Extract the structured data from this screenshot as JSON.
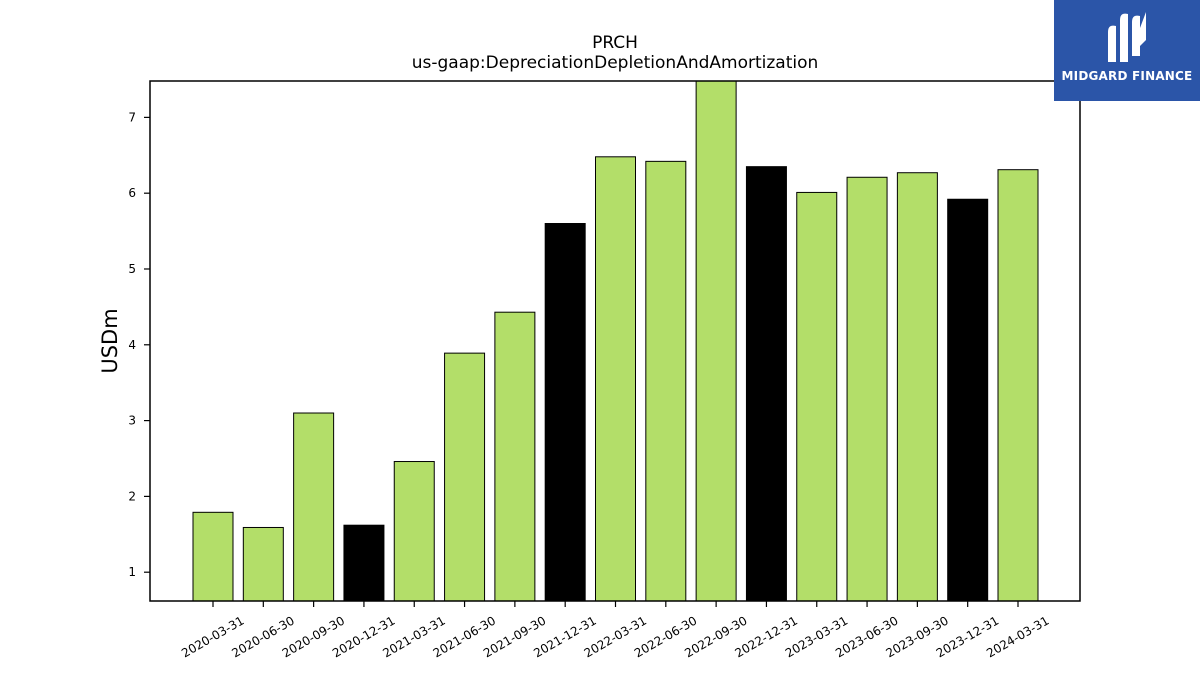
{
  "chart_data": {
    "type": "bar",
    "title": "PRCH",
    "subtitle": "us-gaap:DepreciationDepletionAndAmortization",
    "xlabel": "",
    "ylabel": "USDm",
    "categories": [
      "2020-03-31",
      "2020-06-30",
      "2020-09-30",
      "2020-12-31",
      "2021-03-31",
      "2021-06-30",
      "2021-09-30",
      "2021-12-31",
      "2022-03-31",
      "2022-06-30",
      "2022-09-30",
      "2022-12-31",
      "2023-03-31",
      "2023-06-30",
      "2023-09-30",
      "2023-12-31",
      "2024-03-31"
    ],
    "values": [
      1.79,
      1.59,
      3.1,
      1.62,
      2.46,
      3.89,
      4.43,
      5.6,
      6.48,
      6.42,
      7.48,
      6.35,
      6.01,
      6.21,
      6.27,
      5.92,
      6.31
    ],
    "bar_colors": [
      "#b3de69",
      "#b3de69",
      "#b3de69",
      "#000000",
      "#b3de69",
      "#b3de69",
      "#b3de69",
      "#000000",
      "#b3de69",
      "#b3de69",
      "#b3de69",
      "#000000",
      "#b3de69",
      "#b3de69",
      "#b3de69",
      "#000000",
      "#b3de69"
    ],
    "ylim": [
      0.62,
      7.48
    ],
    "yticks": [
      1,
      2,
      3,
      4,
      5,
      6,
      7
    ],
    "grid": false,
    "legend": "none"
  },
  "logo": {
    "text": "MIDGARD FINANCE",
    "background": "#2b55a8"
  }
}
